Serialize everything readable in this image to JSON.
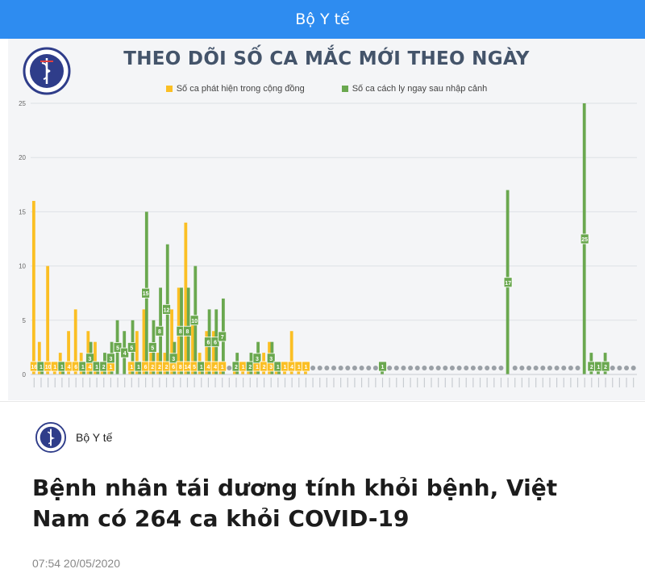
{
  "header": {
    "title": "Bộ Y tế"
  },
  "chart": {
    "title": "THEO DÕI SỐ CA MẮC MỚI THEO NGÀY",
    "legend": [
      {
        "label": "Số ca phát hiện trong cộng đồng",
        "color": "#fbbf24"
      },
      {
        "label": "Số ca cách ly ngay sau nhập cảnh",
        "color": "#6aa84f"
      }
    ]
  },
  "chart_data": {
    "type": "bar",
    "ylim": [
      0,
      25
    ],
    "yticks": [
      "0",
      "5",
      "10",
      "15",
      "20",
      "25"
    ],
    "legend_position": "top-center",
    "grid": true,
    "series": [
      {
        "name": "Số ca phát hiện trong cộng đồng",
        "color": "#fbbf24",
        "values": [
          16,
          3,
          10,
          1,
          2,
          4,
          6,
          2,
          4,
          3,
          1,
          1,
          0,
          0,
          1,
          4,
          6,
          2,
          2,
          2,
          6,
          8,
          14,
          5,
          2,
          4,
          4,
          1,
          0,
          1,
          1,
          1,
          1,
          2,
          3,
          1,
          1,
          4,
          1,
          1,
          0,
          0,
          0,
          0,
          0,
          0,
          0,
          0,
          0,
          0,
          0,
          0,
          0,
          0,
          0,
          0,
          0,
          0,
          0,
          0,
          0,
          0,
          0,
          0,
          0,
          0,
          0,
          0,
          0,
          0,
          0,
          0,
          0,
          0,
          0,
          0,
          0,
          0,
          0,
          0,
          0,
          0,
          0,
          0,
          0,
          0,
          0
        ]
      },
      {
        "name": "Số ca cách ly ngay sau nhập cảnh",
        "color": "#6aa84f",
        "values": [
          0,
          1,
          0,
          0,
          1,
          0,
          0,
          1,
          3,
          1,
          2,
          3,
          5,
          4,
          5,
          1,
          15,
          5,
          8,
          12,
          3,
          8,
          8,
          10,
          1,
          6,
          6,
          7,
          0,
          2,
          0,
          2,
          3,
          0,
          3,
          1,
          0,
          0,
          0,
          0,
          0,
          0,
          0,
          0,
          0,
          0,
          0,
          0,
          0,
          0,
          1,
          0,
          0,
          0,
          0,
          0,
          0,
          0,
          0,
          0,
          0,
          0,
          0,
          0,
          0,
          0,
          0,
          0,
          17,
          0,
          0,
          0,
          0,
          0,
          0,
          0,
          0,
          0,
          0,
          25,
          2,
          1,
          2,
          0,
          0,
          0,
          0
        ]
      }
    ]
  },
  "article": {
    "source": "Bộ Y tế",
    "headline": "Bệnh nhân tái dương tính khỏi bệnh, Việt Nam có 264 ca khỏi COVID-19",
    "timestamp": "07:54 20/05/2020"
  }
}
